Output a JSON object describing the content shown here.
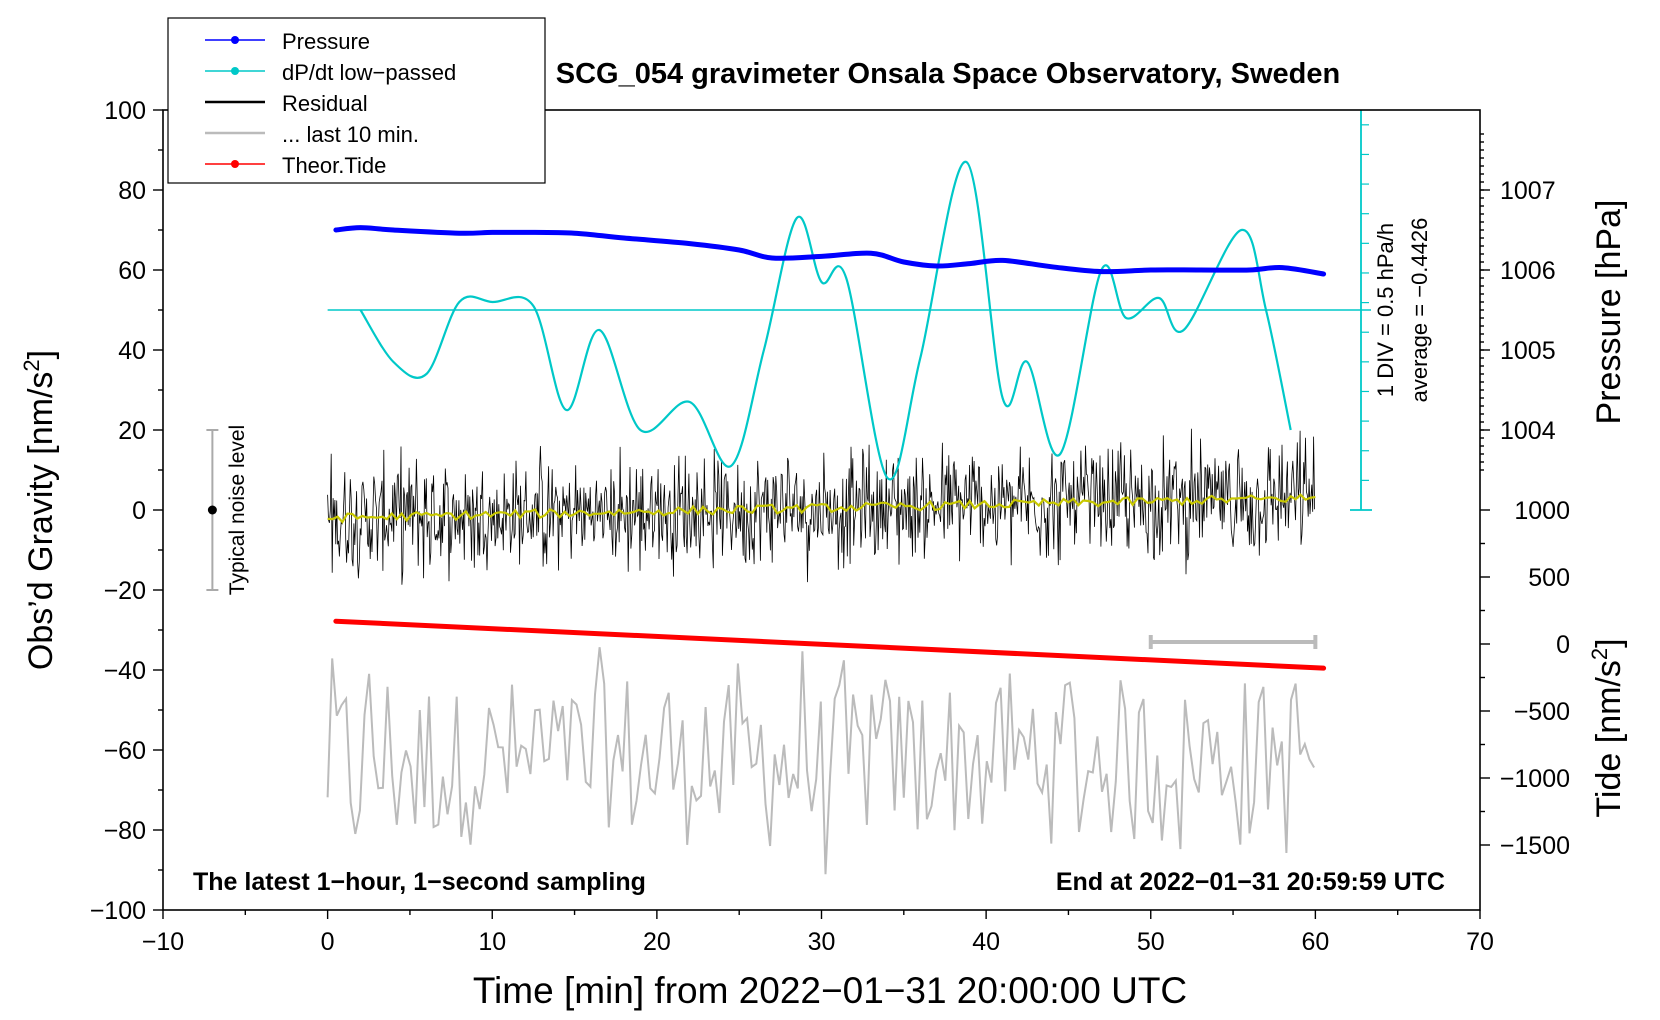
{
  "chart_data": {
    "type": "line",
    "title": "SCG_054 gravimeter Onsala Space Observatory, Sweden",
    "xlabel": "Time [min] from 2022−01−31 20:00:00 UTC",
    "ylabel_main": "Obs’d Gravity [nm/s",
    "ylabel_main_sup": "2",
    "ylabel_main_close": "]",
    "ylabel_pressure": "Pressure [hPa]",
    "ylabel_tide": "Tide [nm/s",
    "ylabel_tide_sup": "2",
    "ylabel_tide_close": "]",
    "xlim": [
      -10,
      70
    ],
    "ylim": [
      -100,
      100
    ],
    "pressure_lim": [
      1003,
      1008
    ],
    "tide_lim": [
      -1500,
      1500
    ],
    "x_ticks": [
      "−10",
      "0",
      "10",
      "20",
      "30",
      "40",
      "50",
      "60",
      "70"
    ],
    "x_tick_values": [
      -10,
      0,
      10,
      20,
      30,
      40,
      50,
      60,
      70
    ],
    "y_ticks": [
      "100",
      "80",
      "60",
      "40",
      "20",
      "0",
      "−20",
      "−40",
      "−60",
      "−80",
      "−100"
    ],
    "y_tick_values": [
      100,
      80,
      60,
      40,
      20,
      0,
      -20,
      -40,
      -60,
      -80,
      -100
    ],
    "pressure_ticks": [
      "1007",
      "1006",
      "1005",
      "1004"
    ],
    "pressure_tick_values": [
      1007,
      1006,
      1005,
      1004
    ],
    "tide_ticks": [
      "1000",
      "500",
      "0",
      "−500",
      "−1000",
      "−1500"
    ],
    "tide_tick_values": [
      1000,
      500,
      0,
      -500,
      -1000,
      -1500
    ],
    "legend": [
      {
        "label": "Pressure",
        "color": "#0000ff",
        "style": "line-dot"
      },
      {
        "label": "dP/dt low−passed",
        "color": "#00c8c8",
        "style": "line-dot"
      },
      {
        "label": "Residual",
        "color": "#000000",
        "style": "line"
      },
      {
        "label": "... last 10 min.",
        "color": "#bbbbbb",
        "style": "line"
      },
      {
        "label": "Theor.Tide",
        "color": "#ff0000",
        "style": "line-dot"
      }
    ],
    "legend_position": "top-left",
    "series": [
      {
        "name": "Pressure",
        "axis": "pressure",
        "color": "#0000ff",
        "x": [
          0.5,
          2,
          4,
          8,
          10,
          12,
          15,
          18,
          22,
          25,
          27,
          30,
          33,
          35,
          37,
          39,
          41,
          44,
          47,
          50,
          53,
          56,
          58,
          60.5
        ],
        "values": [
          1006.5,
          1006.53,
          1006.5,
          1006.46,
          1006.47,
          1006.47,
          1006.46,
          1006.4,
          1006.33,
          1006.25,
          1006.15,
          1006.17,
          1006.21,
          1006.1,
          1006.05,
          1006.08,
          1006.12,
          1006.04,
          1005.98,
          1006.0,
          1006.0,
          1006.0,
          1006.03,
          1005.95
        ]
      },
      {
        "name": "dP/dt low−passed",
        "axis": "gravity",
        "color": "#00c8c8",
        "x": [
          2,
          4,
          6,
          8,
          10,
          12.5,
          14.5,
          16.5,
          19,
          22,
          24.5,
          26.5,
          28.5,
          30,
          31.5,
          34,
          36,
          38.8,
          41,
          42.5,
          44.5,
          47,
          48.5,
          50.5,
          52,
          55.5,
          57,
          58.5
        ],
        "values": [
          50,
          37,
          34,
          52,
          52,
          51,
          25,
          45,
          20,
          27,
          11,
          40,
          73,
          57,
          58,
          8,
          38,
          87,
          28,
          37,
          14,
          60,
          48,
          53,
          45,
          70,
          50,
          20
        ]
      },
      {
        "name": "Theor.Tide",
        "axis": "tide",
        "color": "#ff0000",
        "x": [
          0.5,
          60.5
        ],
        "values": [
          170,
          -180
        ]
      },
      {
        "name": "Residual",
        "axis": "gravity",
        "color": "#000000",
        "x_range": [
          0,
          60
        ],
        "envelope": [
          -27,
          31
        ]
      },
      {
        "name": "Residual trend",
        "axis": "gravity",
        "color": "#c8c800",
        "x": [
          0,
          60
        ],
        "values": [
          -2,
          3
        ]
      },
      {
        "name": "... last 10 min.",
        "axis": "gravity",
        "color": "#bbbbbb",
        "x_range": [
          0,
          60
        ],
        "envelope": [
          -92,
          -33
        ]
      }
    ],
    "dpdt_reference_level": 50,
    "dpdt_scale_label": "1 DIV = 0.5 hPa/h",
    "dpdt_average_label": "average = −0.4426",
    "noise_label": "Typical noise level",
    "noise_range": [
      -20,
      20
    ],
    "noise_x": -7,
    "last10_bar_range": [
      50,
      60
    ],
    "last10_bar_level": -33,
    "annotation_left": "The latest 1−hour, 1−second sampling",
    "annotation_right": "End at 2022−01−31 20:59:59 UTC"
  }
}
